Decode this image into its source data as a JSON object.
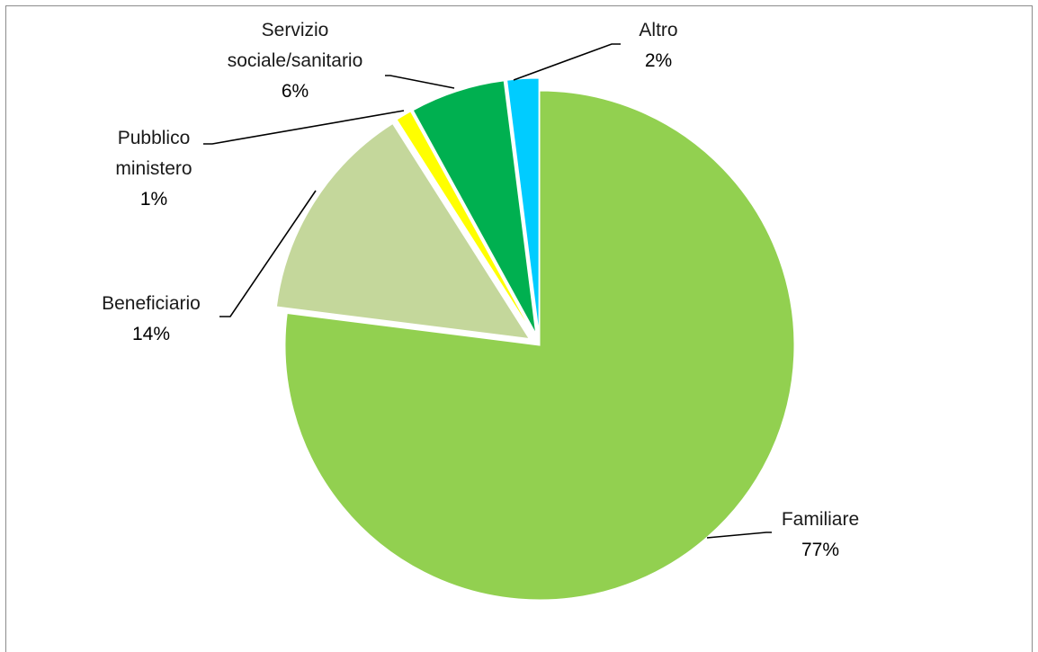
{
  "chart_data": {
    "type": "pie",
    "title": "",
    "slices": [
      {
        "name": "Familiare",
        "label_lines": [
          "Familiare"
        ],
        "value": 77,
        "display": "77%",
        "color": "#92d050",
        "exploded": false
      },
      {
        "name": "Beneficiario",
        "label_lines": [
          "Beneficiario"
        ],
        "value": 14,
        "display": "14%",
        "color": "#c4d79b",
        "exploded": true
      },
      {
        "name": "Pubblico ministero",
        "label_lines": [
          "Pubblico",
          "ministero"
        ],
        "value": 1,
        "display": "1%",
        "color": "#ffff00",
        "exploded": true
      },
      {
        "name": "Servizio sociale/sanitario",
        "label_lines": [
          "Servizio",
          "sociale/sanitario"
        ],
        "value": 6,
        "display": "6%",
        "color": "#00b050",
        "exploded": true
      },
      {
        "name": "Altro",
        "label_lines": [
          "Altro"
        ],
        "value": 2,
        "display": "2%",
        "color": "#00ccff",
        "exploded": true
      }
    ],
    "start_angle_deg": 0,
    "direction": "clockwise",
    "legend": "none",
    "data_labels": "outside with leader lines"
  }
}
